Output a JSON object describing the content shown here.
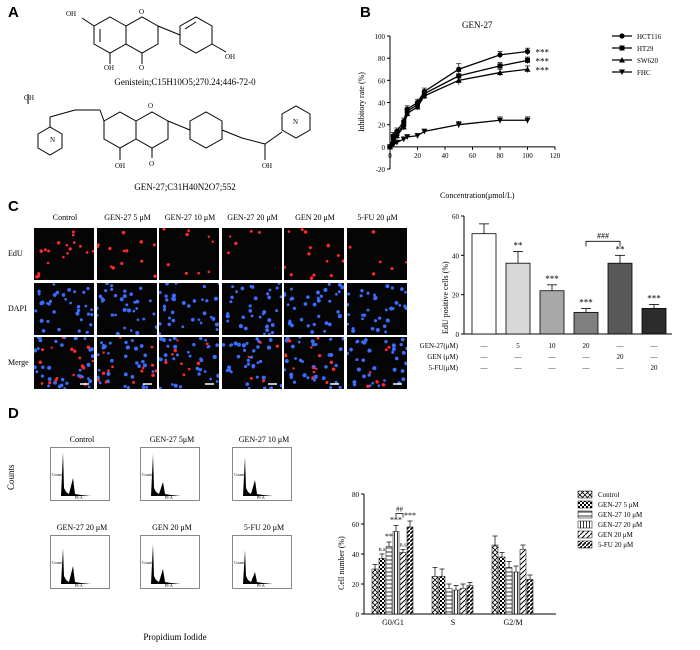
{
  "panels": {
    "A": "A",
    "B": "B",
    "C": "C",
    "D": "D"
  },
  "panelA": {
    "genistein_caption": "Genistein;C15H10O5;270.24;446-72-0",
    "gen27_caption": "GEN-27;C31H40N2O7;552",
    "atoms": {
      "OH": "OH",
      "O": "O",
      "N": "N"
    }
  },
  "chart_B": {
    "type": "line",
    "title": "GEN-27",
    "xlabel": "Concentration(μmol/L)",
    "ylabel": "Inhibitory rate (%)",
    "xlim": [
      0,
      120
    ],
    "ylim": [
      -20,
      100
    ],
    "xticks": [
      0,
      20,
      40,
      60,
      80,
      100,
      120
    ],
    "yticks": [
      -20,
      0,
      20,
      40,
      60,
      80,
      100
    ],
    "significance": "***",
    "series": [
      {
        "name": "HCT116",
        "marker": "circle",
        "x": [
          0,
          2.5,
          5,
          10,
          12.5,
          20,
          25,
          50,
          80,
          100
        ],
        "y": [
          0,
          10,
          14,
          23,
          34,
          40,
          50,
          70,
          83,
          86
        ],
        "err": [
          2,
          3,
          3,
          3,
          3,
          3,
          3,
          5,
          3,
          3
        ]
      },
      {
        "name": "HT29",
        "marker": "square",
        "x": [
          0,
          2.5,
          5,
          10,
          12.5,
          20,
          25,
          50,
          80,
          100
        ],
        "y": [
          0,
          8,
          12,
          20,
          32,
          38,
          48,
          64,
          73,
          78
        ],
        "err": [
          2,
          3,
          3,
          3,
          3,
          3,
          3,
          4,
          3,
          3
        ]
      },
      {
        "name": "SW620",
        "marker": "triangle-up",
        "x": [
          0,
          2.5,
          5,
          10,
          12.5,
          20,
          25,
          50,
          80,
          100
        ],
        "y": [
          0,
          6,
          10,
          18,
          30,
          36,
          46,
          60,
          67,
          70
        ],
        "err": [
          2,
          3,
          3,
          3,
          3,
          3,
          3,
          4,
          3,
          3
        ]
      },
      {
        "name": "FHC",
        "marker": "triangle-down",
        "x": [
          0,
          2.5,
          5,
          10,
          12.5,
          20,
          25,
          50,
          80,
          100
        ],
        "y": [
          0,
          2,
          4,
          7,
          9,
          10,
          14,
          20,
          24,
          24
        ],
        "err": [
          1,
          2,
          2,
          2,
          2,
          2,
          2,
          3,
          3,
          3
        ]
      }
    ]
  },
  "panelC_images": {
    "columns": [
      "Control",
      "GEN-27 5 μM",
      "GEN-27 10 μM",
      "GEN-27 20 μM",
      "GEN 20 μM",
      "5-FU 20 μM"
    ],
    "rows": [
      "EdU",
      "DAPI",
      "Merge"
    ],
    "colors": {
      "edu": "#ff2a2a",
      "dapi": "#3a6cff",
      "bg": "#050505"
    }
  },
  "chart_C": {
    "type": "bar",
    "ylabel": "EdU positive cells (%)",
    "ylim": [
      0,
      60
    ],
    "yticks": [
      0,
      20,
      40,
      60
    ],
    "values": [
      51,
      36,
      22,
      11,
      36,
      13
    ],
    "errors": [
      5,
      6,
      3,
      2,
      4,
      2
    ],
    "significance": [
      "",
      "**",
      "***",
      "***",
      "**",
      "***"
    ],
    "fills": [
      "#ffffff",
      "#d8d8d8",
      "#a8a8a8",
      "#808080",
      "#585858",
      "#2c2c2c"
    ],
    "bracket_label": "###",
    "rows": [
      {
        "label": "GEN-27(μM)",
        "cells": [
          "—",
          "5",
          "10",
          "20",
          "—",
          "—"
        ]
      },
      {
        "label": "GEN (μM)",
        "cells": [
          "—",
          "—",
          "—",
          "—",
          "20",
          "—"
        ]
      },
      {
        "label": "5-FU(μM)",
        "cells": [
          "—",
          "—",
          "—",
          "—",
          "—",
          "20"
        ]
      }
    ]
  },
  "panelD_flow": {
    "titles": [
      "Control",
      "GEN-27 5μM",
      "GEN-27 10 μM",
      "GEN-27 20 μM",
      "GEN 20 μM",
      "5-FU 20 μM"
    ],
    "xlabel": "Propidium  Iodide",
    "ylabel": "Counts",
    "axis_x": "PI-A",
    "axis_y": "Count"
  },
  "chart_D": {
    "type": "bar",
    "categories": [
      "G0/G1",
      "S",
      "G2/M"
    ],
    "ylabel": "Cell number (%)",
    "ylim": [
      0,
      80
    ],
    "yticks": [
      0,
      20,
      40,
      60,
      80
    ],
    "series": [
      {
        "name": "Control",
        "values": [
          30,
          25,
          46
        ],
        "err": [
          3,
          6,
          6
        ]
      },
      {
        "name": "GEN-27 5 μM",
        "values": [
          37,
          25,
          38
        ],
        "err": [
          3,
          5,
          3
        ]
      },
      {
        "name": "GEN-27 10 μM",
        "values": [
          45,
          17,
          31
        ],
        "err": [
          3,
          3,
          4
        ]
      },
      {
        "name": "GEN-27 20 μM",
        "values": [
          55,
          16,
          28
        ],
        "err": [
          4,
          3,
          4
        ]
      },
      {
        "name": "GEN 20 μM",
        "values": [
          41,
          17,
          43
        ],
        "err": [
          2,
          3,
          3
        ]
      },
      {
        "name": "5-FU 20 μM",
        "values": [
          58,
          19,
          23
        ],
        "err": [
          4,
          2,
          3
        ]
      }
    ],
    "annotations": [
      "n.s",
      "**",
      "***",
      "n.s",
      "***"
    ],
    "bracket_label": "##"
  }
}
